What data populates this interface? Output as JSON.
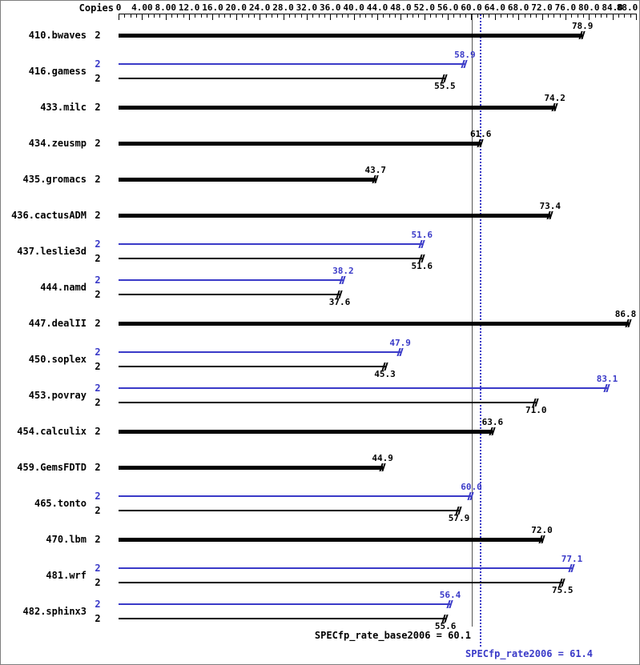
{
  "chart_data": {
    "type": "bar",
    "orientation": "horizontal",
    "copies_label": "Copies",
    "axis": {
      "min": 0,
      "max": 88,
      "major_step": 4,
      "minor_step": 1,
      "tick_labels": [
        "0",
        "4.00",
        "8.00",
        "12.0",
        "16.0",
        "20.0",
        "24.0",
        "28.0",
        "32.0",
        "36.0",
        "40.0",
        "44.0",
        "48.0",
        "52.0",
        "56.0",
        "60.0",
        "64.0",
        "68.0",
        "72.0",
        "76.0",
        "80.0",
        "84.0",
        "88.0"
      ]
    },
    "colors": {
      "base": "#000000",
      "peak": "#3a3ac8"
    },
    "benchmarks": [
      {
        "name": "410.bwaves",
        "bars": [
          {
            "series": "base",
            "copies": "2",
            "value": 78.9,
            "label": "78.9"
          }
        ]
      },
      {
        "name": "416.gamess",
        "bars": [
          {
            "series": "peak",
            "copies": "2",
            "value": 58.9,
            "label": "58.9"
          },
          {
            "series": "base",
            "copies": "2",
            "value": 55.5,
            "label": "55.5"
          }
        ]
      },
      {
        "name": "433.milc",
        "bars": [
          {
            "series": "base",
            "copies": "2",
            "value": 74.2,
            "label": "74.2"
          }
        ]
      },
      {
        "name": "434.zeusmp",
        "bars": [
          {
            "series": "base",
            "copies": "2",
            "value": 61.6,
            "label": "61.6"
          }
        ]
      },
      {
        "name": "435.gromacs",
        "bars": [
          {
            "series": "base",
            "copies": "2",
            "value": 43.7,
            "label": "43.7"
          }
        ]
      },
      {
        "name": "436.cactusADM",
        "bars": [
          {
            "series": "base",
            "copies": "2",
            "value": 73.4,
            "label": "73.4"
          }
        ]
      },
      {
        "name": "437.leslie3d",
        "bars": [
          {
            "series": "peak",
            "copies": "2",
            "value": 51.6,
            "label": "51.6"
          },
          {
            "series": "base",
            "copies": "2",
            "value": 51.6,
            "label": "51.6"
          }
        ]
      },
      {
        "name": "444.namd",
        "bars": [
          {
            "series": "peak",
            "copies": "2",
            "value": 38.2,
            "label": "38.2"
          },
          {
            "series": "base",
            "copies": "2",
            "value": 37.6,
            "label": "37.6"
          }
        ]
      },
      {
        "name": "447.dealII",
        "bars": [
          {
            "series": "base",
            "copies": "2",
            "value": 86.8,
            "label": "86.8"
          }
        ]
      },
      {
        "name": "450.soplex",
        "bars": [
          {
            "series": "peak",
            "copies": "2",
            "value": 47.9,
            "label": "47.9"
          },
          {
            "series": "base",
            "copies": "2",
            "value": 45.3,
            "label": "45.3"
          }
        ]
      },
      {
        "name": "453.povray",
        "bars": [
          {
            "series": "peak",
            "copies": "2",
            "value": 83.1,
            "label": "83.1"
          },
          {
            "series": "base",
            "copies": "2",
            "value": 71.0,
            "label": "71.0"
          }
        ]
      },
      {
        "name": "454.calculix",
        "bars": [
          {
            "series": "base",
            "copies": "2",
            "value": 63.6,
            "label": "63.6"
          }
        ]
      },
      {
        "name": "459.GemsFDTD",
        "bars": [
          {
            "series": "base",
            "copies": "2",
            "value": 44.9,
            "label": "44.9"
          }
        ]
      },
      {
        "name": "465.tonto",
        "bars": [
          {
            "series": "peak",
            "copies": "2",
            "value": 60.0,
            "label": "60.0"
          },
          {
            "series": "base",
            "copies": "2",
            "value": 57.9,
            "label": "57.9"
          }
        ]
      },
      {
        "name": "470.lbm",
        "bars": [
          {
            "series": "base",
            "copies": "2",
            "value": 72.0,
            "label": "72.0"
          }
        ]
      },
      {
        "name": "481.wrf",
        "bars": [
          {
            "series": "peak",
            "copies": "2",
            "value": 77.1,
            "label": "77.1"
          },
          {
            "series": "base",
            "copies": "2",
            "value": 75.5,
            "label": "75.5"
          }
        ]
      },
      {
        "name": "482.sphinx3",
        "bars": [
          {
            "series": "peak",
            "copies": "2",
            "value": 56.4,
            "label": "56.4"
          },
          {
            "series": "base",
            "copies": "2",
            "value": 55.6,
            "label": "55.6"
          }
        ]
      }
    ],
    "reference_lines": [
      {
        "name": "base",
        "value": 60.1,
        "style": "solid",
        "color": "#555555"
      },
      {
        "name": "peak",
        "value": 61.4,
        "style": "dotted",
        "color": "#3a3ac8"
      }
    ],
    "summary": {
      "base": {
        "metric": "SPECfp_rate_base2006",
        "value": 60.1,
        "text": "SPECfp_rate_base2006 = 60.1"
      },
      "peak": {
        "metric": "SPECfp_rate2006",
        "value": 61.4,
        "text": "SPECfp_rate2006 = 61.4"
      }
    }
  }
}
